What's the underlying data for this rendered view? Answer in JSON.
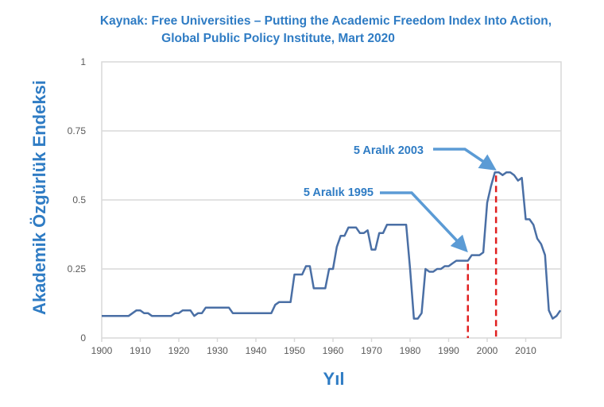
{
  "chart_data": {
    "type": "line",
    "title_lines": [
      "Kaynak: Free Universities – Putting the Academic Freedom Index Into Action,",
      "Global Public Policy Institute, Mart 2020"
    ],
    "xlabel": "Yıl",
    "ylabel": "Akademik Özgürlük Endeksi",
    "xlim": [
      1900,
      2019
    ],
    "ylim": [
      0,
      1
    ],
    "xticks": [
      "1900",
      "1910",
      "1920",
      "1930",
      "1940",
      "1950",
      "1960",
      "1970",
      "1980",
      "1990",
      "2000",
      "2010"
    ],
    "yticks": [
      "0",
      "0.25",
      "0.5",
      "0.75",
      "1"
    ],
    "grid": "horizontal",
    "series": [
      {
        "name": "Akademik Özgürlük Endeksi",
        "color": "#4a6fa5",
        "x": [
          1900,
          1907,
          1909,
          1910,
          1911,
          1912,
          1913,
          1918,
          1919,
          1920,
          1921,
          1923,
          1924,
          1925,
          1926,
          1927,
          1933,
          1934,
          1944,
          1945,
          1946,
          1949,
          1950,
          1952,
          1953,
          1954,
          1955,
          1958,
          1959,
          1960,
          1961,
          1962,
          1963,
          1964,
          1966,
          1967,
          1968,
          1969,
          1970,
          1971,
          1972,
          1973,
          1974,
          1979,
          1980,
          1981,
          1982,
          1983,
          1984,
          1985,
          1986,
          1987,
          1988,
          1989,
          1990,
          1991,
          1992,
          1995,
          1996,
          1998,
          1999,
          2000,
          2001,
          2002,
          2003,
          2004,
          2005,
          2006,
          2007,
          2008,
          2009,
          2010,
          2011,
          2012,
          2013,
          2014,
          2015,
          2016,
          2017,
          2018,
          2019
        ],
        "y": [
          0.08,
          0.08,
          0.1,
          0.1,
          0.09,
          0.09,
          0.08,
          0.08,
          0.09,
          0.09,
          0.1,
          0.1,
          0.08,
          0.09,
          0.09,
          0.11,
          0.11,
          0.09,
          0.09,
          0.12,
          0.13,
          0.13,
          0.23,
          0.23,
          0.26,
          0.26,
          0.18,
          0.18,
          0.25,
          0.25,
          0.33,
          0.37,
          0.37,
          0.4,
          0.4,
          0.38,
          0.38,
          0.39,
          0.32,
          0.32,
          0.38,
          0.38,
          0.41,
          0.41,
          0.25,
          0.07,
          0.07,
          0.09,
          0.25,
          0.24,
          0.24,
          0.25,
          0.25,
          0.26,
          0.26,
          0.27,
          0.28,
          0.28,
          0.3,
          0.3,
          0.31,
          0.49,
          0.55,
          0.6,
          0.6,
          0.59,
          0.6,
          0.6,
          0.59,
          0.57,
          0.58,
          0.43,
          0.43,
          0.41,
          0.36,
          0.34,
          0.3,
          0.1,
          0.07,
          0.08,
          0.1
        ]
      }
    ],
    "annotations": [
      {
        "label": "5 Aralık 1995",
        "year": 1995,
        "color": "#e02020"
      },
      {
        "label": "5 Aralık 2003",
        "year": 2002.3,
        "color": "#e02020"
      }
    ]
  }
}
